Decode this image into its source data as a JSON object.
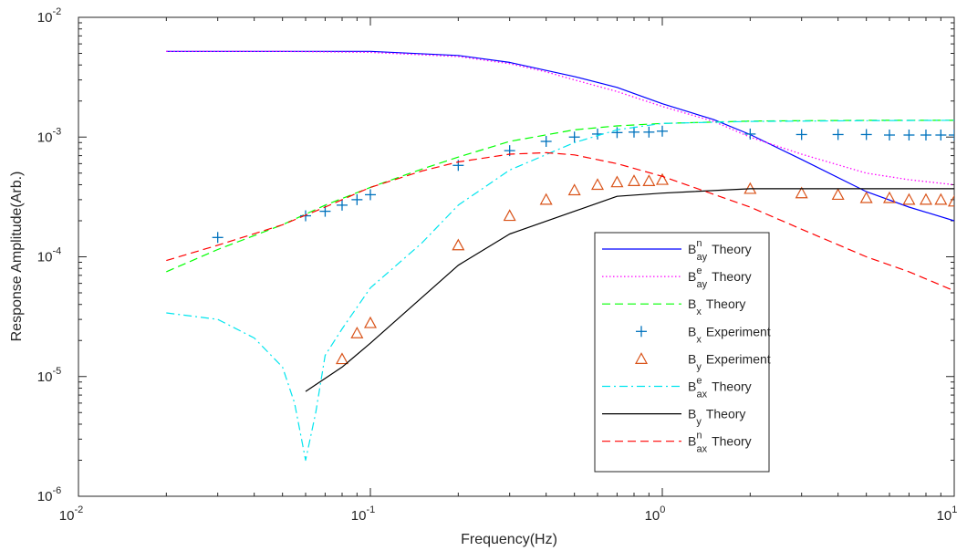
{
  "chart_data": {
    "type": "line",
    "xlabel": "Frequency(Hz)",
    "ylabel": "Response Amplitude(Arb.)",
    "x_scale": "log",
    "y_scale": "log",
    "xlim": [
      0.01,
      10
    ],
    "ylim": [
      1e-06,
      0.01
    ],
    "x_ticks": [
      {
        "value": 0.01,
        "base": "10",
        "exp": "-2"
      },
      {
        "value": 0.1,
        "base": "10",
        "exp": "-1"
      },
      {
        "value": 1,
        "base": "10",
        "exp": "0"
      },
      {
        "value": 10,
        "base": "10",
        "exp": "1"
      }
    ],
    "y_ticks": [
      {
        "value": 1e-06,
        "base": "10",
        "exp": "-6"
      },
      {
        "value": 1e-05,
        "base": "10",
        "exp": "-5"
      },
      {
        "value": 0.0001,
        "base": "10",
        "exp": "-4"
      },
      {
        "value": 0.001,
        "base": "10",
        "exp": "-3"
      },
      {
        "value": 0.01,
        "base": "10",
        "exp": "-2"
      }
    ],
    "grid": false,
    "legend_position": "lower-right",
    "series": [
      {
        "legend_main": "B",
        "legend_sup": "n",
        "legend_sub": "ay",
        "legend_tail": "Theory",
        "style": "solid",
        "color": "#0000ff",
        "x": [
          0.02,
          0.05,
          0.1,
          0.2,
          0.3,
          0.4,
          0.5,
          0.7,
          1,
          1.5,
          2,
          3,
          5,
          7,
          10
        ],
        "y": [
          0.0052,
          0.0052,
          0.0052,
          0.0048,
          0.0042,
          0.0036,
          0.0032,
          0.0026,
          0.0019,
          0.0014,
          0.00105,
          0.00065,
          0.00035,
          0.00026,
          0.0002
        ]
      },
      {
        "legend_main": "B",
        "legend_sup": "e",
        "legend_sub": "ay",
        "legend_tail": "Theory",
        "style": "dotted",
        "color": "#ff00ff",
        "x": [
          0.02,
          0.05,
          0.1,
          0.2,
          0.3,
          0.4,
          0.5,
          0.7,
          1,
          1.5,
          2,
          3,
          5,
          7,
          10
        ],
        "y": [
          0.0052,
          0.0052,
          0.0051,
          0.0047,
          0.0041,
          0.0035,
          0.003,
          0.0024,
          0.0018,
          0.00135,
          0.001,
          0.00072,
          0.0005,
          0.00044,
          0.0004
        ]
      },
      {
        "legend_main": "B",
        "legend_sup": "",
        "legend_sub": "x",
        "legend_tail": "Theory",
        "style": "dashed",
        "color": "#00ff00",
        "x": [
          0.02,
          0.03,
          0.05,
          0.07,
          0.1,
          0.15,
          0.2,
          0.3,
          0.5,
          0.7,
          1,
          2,
          5,
          10
        ],
        "y": [
          7.5e-05,
          0.000115,
          0.000185,
          0.00027,
          0.00038,
          0.00054,
          0.00068,
          0.00092,
          0.00115,
          0.00124,
          0.0013,
          0.00136,
          0.00138,
          0.00138
        ]
      },
      {
        "legend_main": "B",
        "legend_sup": "",
        "legend_sub": "x",
        "legend_tail": "Experiment",
        "style": "plus",
        "color": "#0072bd",
        "x": [
          0.03,
          0.06,
          0.07,
          0.08,
          0.09,
          0.1,
          0.2,
          0.3,
          0.4,
          0.5,
          0.6,
          0.7,
          0.8,
          0.9,
          1,
          2,
          3,
          4,
          5,
          6,
          7,
          8,
          9,
          10
        ],
        "y": [
          0.000145,
          0.00022,
          0.00024,
          0.00027,
          0.0003,
          0.00033,
          0.00058,
          0.00077,
          0.00092,
          0.001,
          0.00106,
          0.00109,
          0.0011,
          0.0011,
          0.00112,
          0.00106,
          0.00105,
          0.00105,
          0.00105,
          0.00104,
          0.00104,
          0.00104,
          0.00104,
          0.00104
        ]
      },
      {
        "legend_main": "B",
        "legend_sup": "",
        "legend_sub": "y",
        "legend_tail": "Experiment",
        "style": "triangle",
        "color": "#d95319",
        "x": [
          0.08,
          0.09,
          0.1,
          0.2,
          0.3,
          0.4,
          0.5,
          0.6,
          0.7,
          0.8,
          0.9,
          1,
          2,
          3,
          4,
          5,
          6,
          7,
          8,
          9,
          10
        ],
        "y": [
          1.4e-05,
          2.3e-05,
          2.8e-05,
          0.000125,
          0.00022,
          0.0003,
          0.00036,
          0.0004,
          0.00042,
          0.00043,
          0.00043,
          0.00044,
          0.00037,
          0.00034,
          0.00033,
          0.00031,
          0.00031,
          0.0003,
          0.0003,
          0.0003,
          0.00029
        ]
      },
      {
        "legend_main": "B",
        "legend_sup": "e",
        "legend_sub": "ax",
        "legend_tail": "Theory",
        "style": "dashdot",
        "color": "#00e5ee",
        "x": [
          0.02,
          0.03,
          0.04,
          0.05,
          0.055,
          0.06,
          0.065,
          0.07,
          0.08,
          0.1,
          0.15,
          0.2,
          0.3,
          0.5,
          0.7,
          1,
          2,
          5,
          10
        ],
        "y": [
          3.4e-05,
          3e-05,
          2.1e-05,
          1.2e-05,
          6e-06,
          2e-06,
          5e-06,
          1.5e-05,
          2.5e-05,
          5.5e-05,
          0.00013,
          0.00027,
          0.00053,
          0.0009,
          0.00115,
          0.0013,
          0.00135,
          0.00137,
          0.00138
        ]
      },
      {
        "legend_main": "B",
        "legend_sup": "",
        "legend_sub": "y",
        "legend_tail": "Theory",
        "style": "solid",
        "color": "#000000",
        "x": [
          0.06,
          0.08,
          0.1,
          0.2,
          0.3,
          0.5,
          0.7,
          1,
          2,
          5,
          10
        ],
        "y": [
          7.5e-06,
          1.2e-05,
          1.9e-05,
          8.5e-05,
          0.000155,
          0.00024,
          0.00032,
          0.00034,
          0.00037,
          0.00037,
          0.00037
        ]
      },
      {
        "legend_main": "B",
        "legend_sup": "n",
        "legend_sub": "ax",
        "legend_tail": "Theory",
        "style": "dashed",
        "color": "#ff0000",
        "x": [
          0.02,
          0.03,
          0.05,
          0.07,
          0.1,
          0.15,
          0.2,
          0.3,
          0.4,
          0.5,
          0.7,
          1,
          2,
          3,
          5,
          7,
          10
        ],
        "y": [
          9.3e-05,
          0.000125,
          0.000185,
          0.00026,
          0.00038,
          0.00052,
          0.00062,
          0.00072,
          0.00074,
          0.00071,
          0.0006,
          0.00047,
          0.00026,
          0.00017,
          0.0001,
          7.5e-05,
          5.2e-05
        ]
      }
    ]
  }
}
